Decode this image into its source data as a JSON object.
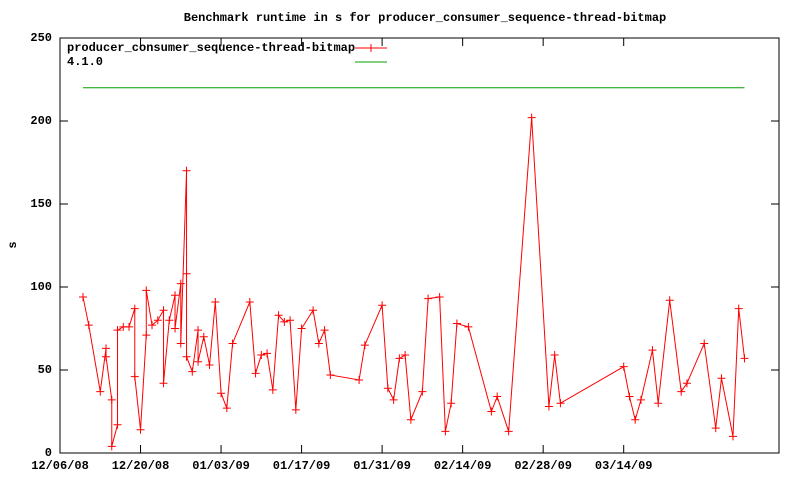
{
  "chart_data": {
    "type": "line",
    "title": "Benchmark runtime in s for producer_consumer_sequence-thread-bitmap",
    "y_label": "s",
    "xlim": [
      "2008-12-06",
      "2009-04-10"
    ],
    "xticks": [
      {
        "value": "2008-12-06",
        "label": "12/06/08"
      },
      {
        "value": "2008-12-20",
        "label": "12/20/08"
      },
      {
        "value": "2009-01-03",
        "label": "01/03/09"
      },
      {
        "value": "2009-01-17",
        "label": "01/17/09"
      },
      {
        "value": "2009-01-31",
        "label": "01/31/09"
      },
      {
        "value": "2009-02-14",
        "label": "02/14/09"
      },
      {
        "value": "2009-02-28",
        "label": "02/28/09"
      },
      {
        "value": "2009-03-14",
        "label": "03/14/09"
      }
    ],
    "ylim": [
      0,
      250
    ],
    "yticks": [
      0,
      50,
      100,
      150,
      200,
      250
    ],
    "grid": false,
    "legend": "top-left",
    "series": [
      {
        "name": "producer_consumer_sequence-thread-bitmap",
        "color": "#ff0000",
        "marker": "+",
        "x": [
          "2008-12-10",
          "2008-12-11",
          "2008-12-13",
          "2008-12-14",
          "2008-12-14",
          "2008-12-15",
          "2008-12-15",
          "2008-12-16",
          "2008-12-16",
          "2008-12-17",
          "2008-12-18",
          "2008-12-19",
          "2008-12-19",
          "2008-12-20",
          "2008-12-21",
          "2008-12-21",
          "2008-12-22",
          "2008-12-23",
          "2008-12-24",
          "2008-12-24",
          "2008-12-25",
          "2008-12-26",
          "2008-12-26",
          "2008-12-27",
          "2008-12-27",
          "2008-12-28",
          "2008-12-28",
          "2008-12-28",
          "2008-12-29",
          "2008-12-30",
          "2008-12-30",
          "2008-12-31",
          "2009-01-01",
          "2009-01-02",
          "2009-01-03",
          "2009-01-04",
          "2009-01-05",
          "2009-01-08",
          "2009-01-09",
          "2009-01-10",
          "2009-01-11",
          "2009-01-12",
          "2009-01-13",
          "2009-01-14",
          "2009-01-15",
          "2009-01-16",
          "2009-01-17",
          "2009-01-19",
          "2009-01-20",
          "2009-01-21",
          "2009-01-22",
          "2009-01-27",
          "2009-01-28",
          "2009-01-31",
          "2009-02-01",
          "2009-02-02",
          "2009-02-03",
          "2009-02-04",
          "2009-02-05",
          "2009-02-07",
          "2009-02-08",
          "2009-02-10",
          "2009-02-11",
          "2009-02-12",
          "2009-02-13",
          "2009-02-15",
          "2009-02-19",
          "2009-02-20",
          "2009-02-22",
          "2009-02-26",
          "2009-03-01",
          "2009-03-02",
          "2009-03-03",
          "2009-03-14",
          "2009-03-15",
          "2009-03-16",
          "2009-03-17",
          "2009-03-19",
          "2009-03-20",
          "2009-03-22",
          "2009-03-24",
          "2009-03-25",
          "2009-03-28",
          "2009-03-30",
          "2009-03-31",
          "2009-04-02",
          "2009-04-03",
          "2009-04-04"
        ],
        "values": [
          94,
          77,
          37,
          63,
          58,
          32,
          4,
          17,
          74,
          76,
          76,
          87,
          46,
          14,
          71,
          98,
          77,
          80,
          86,
          42,
          80,
          95,
          75,
          102,
          66,
          170,
          108,
          58,
          49,
          74,
          55,
          70,
          53,
          91,
          36,
          27,
          66,
          91,
          48,
          59,
          60,
          38,
          83,
          79,
          80,
          26,
          75,
          86,
          66,
          74,
          47,
          44,
          65,
          89,
          39,
          32,
          57,
          59,
          20,
          37,
          93,
          94,
          13,
          30,
          78,
          76,
          25,
          34,
          13,
          202,
          28,
          59,
          30,
          52,
          34,
          20,
          32,
          62,
          30,
          92,
          37,
          42,
          66,
          15,
          45,
          10,
          87,
          57
        ]
      },
      {
        "name": "4.1.0",
        "color": "#00a000",
        "x": [
          "2008-12-10",
          "2009-04-04"
        ],
        "values": [
          220,
          220
        ]
      }
    ]
  }
}
